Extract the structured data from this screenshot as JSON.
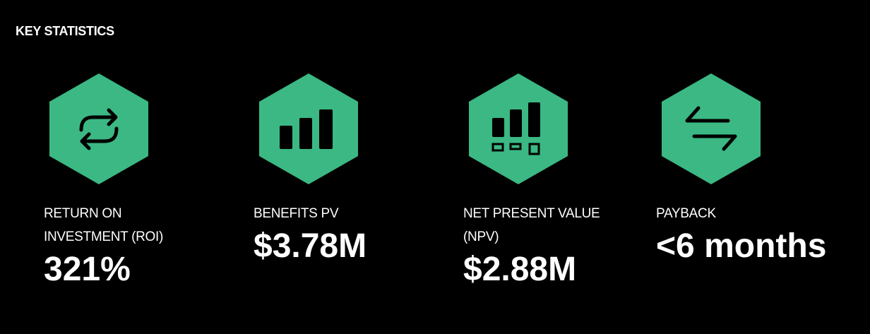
{
  "header": {
    "title": "KEY STATISTICS"
  },
  "stats": [
    {
      "label": "RETURN ON INVESTMENT (ROI)",
      "value": "321%"
    },
    {
      "label": "BENEFITS PV",
      "value": "$3.78M"
    },
    {
      "label": "NET PRESENT VALUE (NPV)",
      "value": "$2.88M"
    },
    {
      "label": "PAYBACK",
      "value": "<6 months"
    }
  ]
}
